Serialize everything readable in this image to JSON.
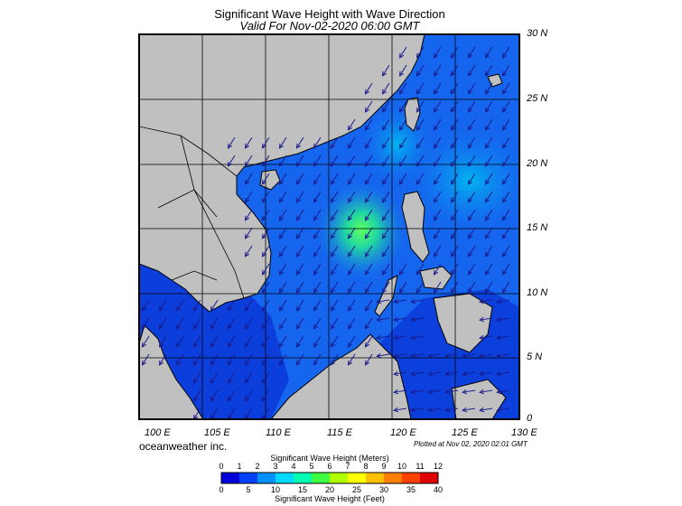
{
  "header": {
    "title": "Significant Wave Height with Wave Direction",
    "subtitle": "Valid For Nov-02-2020 06:00 GMT"
  },
  "axes": {
    "lat_labels": [
      "30 N",
      "25 N",
      "20 N",
      "15 N",
      "10 N",
      "5 N",
      "0"
    ],
    "lon_labels": [
      "100 E",
      "105 E",
      "110 E",
      "115 E",
      "120 E",
      "125 E",
      "130 E"
    ]
  },
  "footer": {
    "credit": "oceanweather inc.",
    "plotted": "Plotted at Nov 02, 2020 02:01 GMT"
  },
  "colorbar": {
    "meters_title": "Significant Wave Height (Meters)",
    "meters_ticks": [
      "0",
      "1",
      "2",
      "3",
      "4",
      "5",
      "6",
      "7",
      "8",
      "9",
      "10",
      "11",
      "12"
    ],
    "feet_title": "Significant Wave Height (Feet)",
    "feet_ticks": [
      "0",
      "5",
      "10",
      "15",
      "20",
      "25",
      "30",
      "35",
      "40"
    ],
    "colors": [
      "#0000d8",
      "#0040ff",
      "#0090ff",
      "#00d8ff",
      "#00ffb0",
      "#40ff40",
      "#b0ff00",
      "#ffff00",
      "#ffc000",
      "#ff8000",
      "#ff4000",
      "#e00000"
    ]
  },
  "map_colors": {
    "land": "#c0c0c0",
    "sea_low": "#0a3ad8",
    "sea_mid": "#1470f0",
    "peak": "#40e080",
    "arrow": "#1a1a8c",
    "grid": "#000000"
  }
}
